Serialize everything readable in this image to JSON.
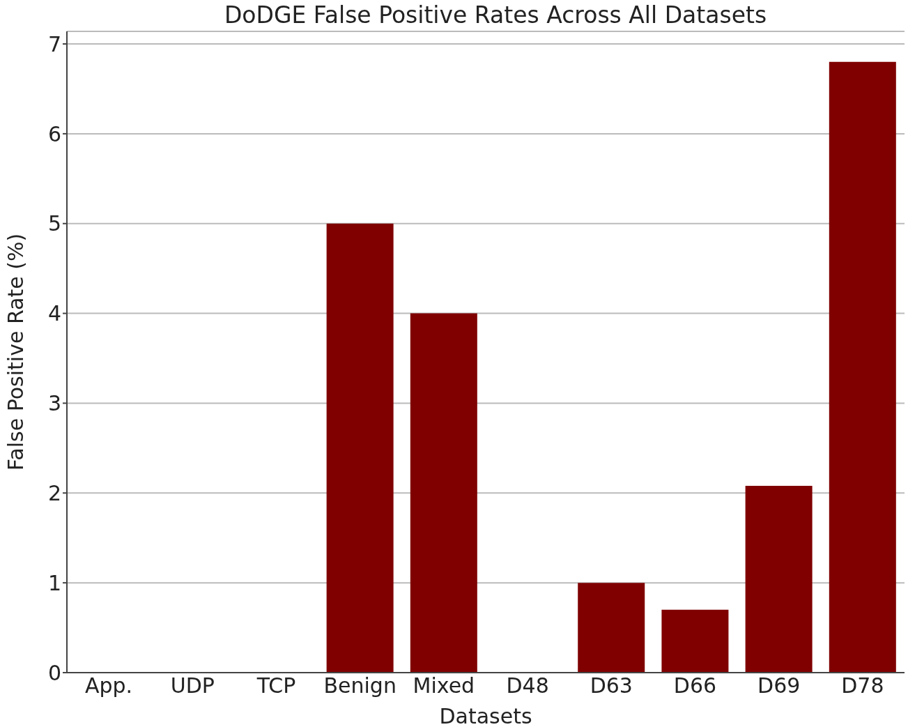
{
  "chart_data": {
    "type": "bar",
    "title": "DoDGE False Positive Rates Across All Datasets",
    "xlabel": "Datasets",
    "ylabel": "False Positive Rate (%)",
    "categories": [
      "App.",
      "UDP",
      "TCP",
      "Benign",
      "Mixed",
      "D48",
      "D63",
      "D66",
      "D69",
      "D78"
    ],
    "values": [
      0,
      0,
      0,
      5.0,
      4.0,
      0,
      1.0,
      0.7,
      2.08,
      6.8
    ],
    "color": "#800000",
    "ylim": [
      0,
      7.14
    ],
    "yticks": [
      0,
      1,
      2,
      3,
      4,
      5,
      6,
      7
    ],
    "grid": "y"
  }
}
